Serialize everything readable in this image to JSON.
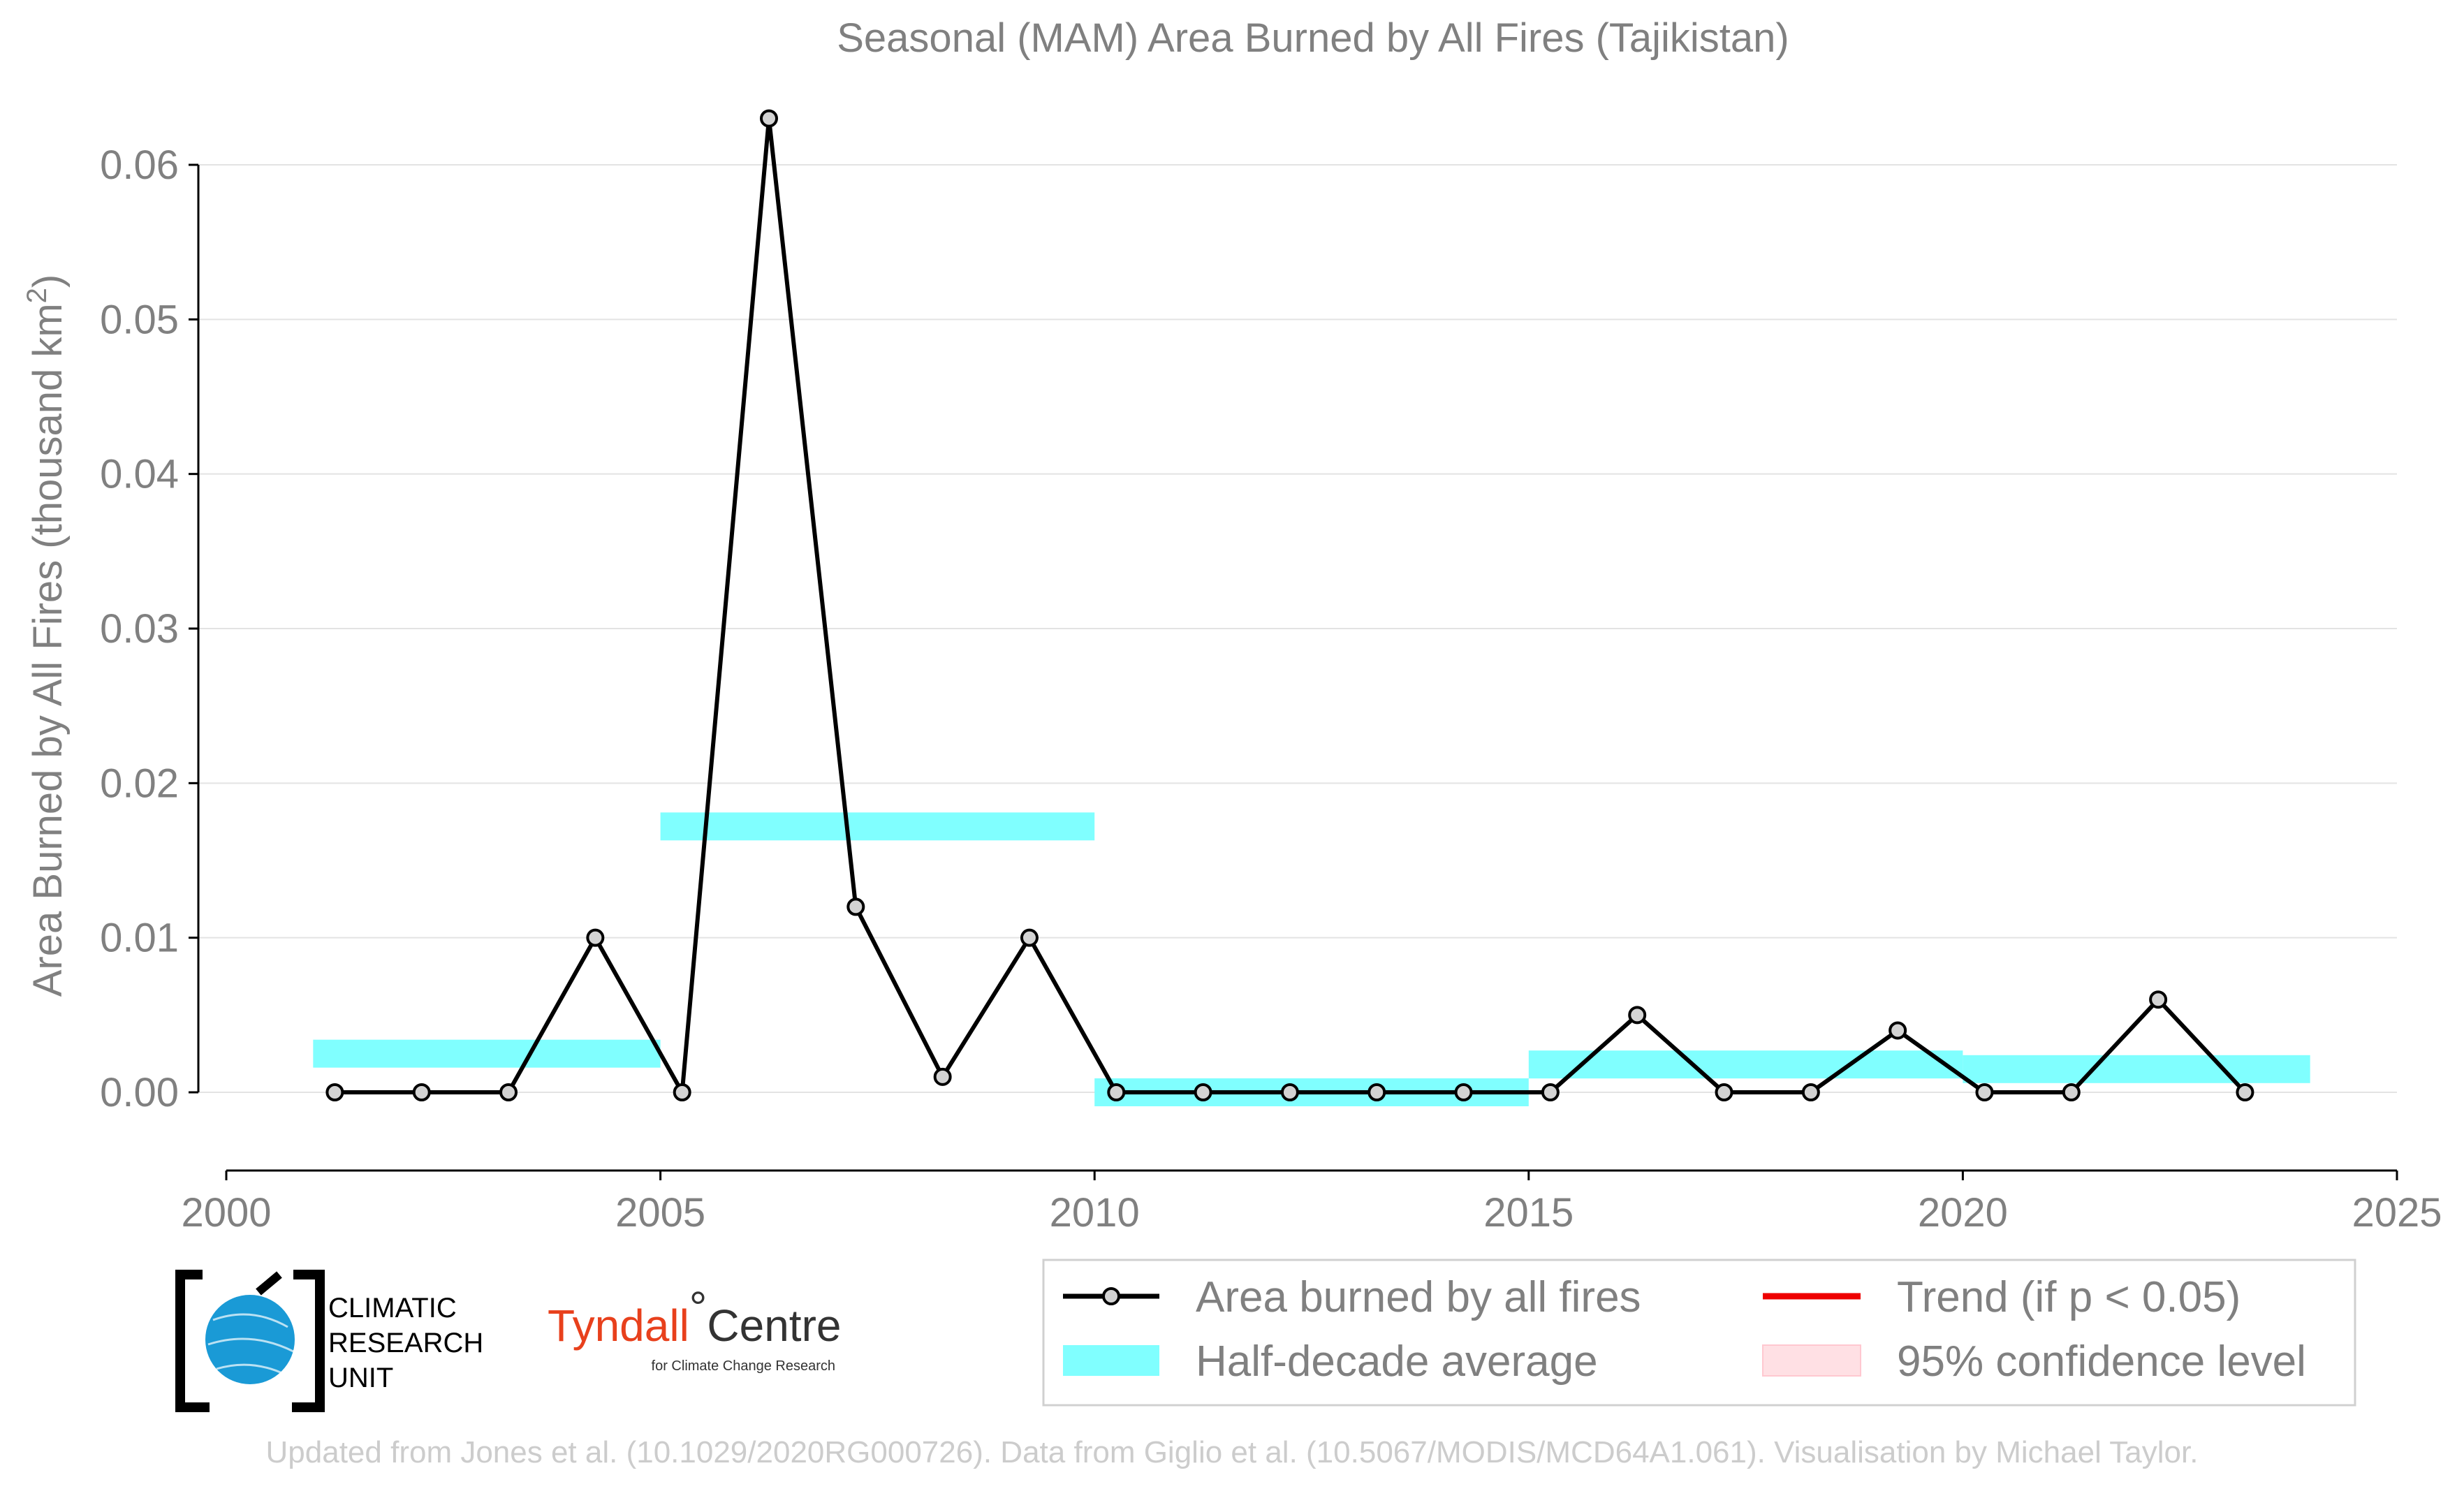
{
  "chart_data": {
    "type": "line",
    "title": "Seasonal (MAM) Area Burned by All Fires (Tajikistan)",
    "xlabel": "",
    "ylabel": "Area Burned by All Fires (thousand km",
    "ylabel_sup": "2",
    "ylabel_tail": ")",
    "xlim": [
      2000,
      2025
    ],
    "ylim": [
      -0.005,
      0.065
    ],
    "x_ticks": [
      2000,
      2005,
      2010,
      2015,
      2020,
      2025
    ],
    "x_tick_labels": [
      "2000",
      "2005",
      "2010",
      "2015",
      "2020",
      "2025"
    ],
    "y_ticks": [
      0.0,
      0.01,
      0.02,
      0.03,
      0.04,
      0.05,
      0.06
    ],
    "y_tick_labels": [
      "0.00",
      "0.01",
      "0.02",
      "0.03",
      "0.04",
      "0.05",
      "0.06"
    ],
    "grid": true,
    "series": [
      {
        "name": "Area burned by all fires",
        "color": "#000000",
        "marker_color": "#d3d3d3",
        "x": [
          2001,
          2002,
          2003,
          2004,
          2005,
          2006,
          2007,
          2008,
          2009,
          2010,
          2011,
          2012,
          2013,
          2014,
          2015,
          2016,
          2017,
          2018,
          2019,
          2020,
          2021,
          2022,
          2023
        ],
        "y": [
          0.0,
          0.0,
          0.0,
          0.01,
          0.0,
          0.063,
          0.012,
          0.001,
          0.01,
          0.0,
          0.0,
          0.0,
          0.0,
          0.0,
          0.0,
          0.005,
          0.0,
          0.0,
          0.004,
          0.0,
          0.0,
          0.006,
          0.0
        ]
      }
    ],
    "half_decade_average": {
      "name": "Half-decade average",
      "color": "#80ffff",
      "segments": [
        {
          "x_start": 2001,
          "x_end": 2005,
          "y": 0.0025
        },
        {
          "x_start": 2005,
          "x_end": 2010,
          "y": 0.0172
        },
        {
          "x_start": 2010,
          "x_end": 2015,
          "y": 0.0
        },
        {
          "x_start": 2015,
          "x_end": 2020,
          "y": 0.0018
        },
        {
          "x_start": 2020,
          "x_end": 2024,
          "y": 0.0015
        }
      ]
    },
    "legend": {
      "placement": "bottom-right",
      "items": [
        {
          "label": "Area burned by all fires",
          "kind": "line-marker",
          "color": "#000000"
        },
        {
          "label": "Trend (if p < 0.05)",
          "kind": "line",
          "color": "#ff0000"
        },
        {
          "label": "Half-decade average",
          "kind": "patch",
          "color": "#80ffff"
        },
        {
          "label": "95% confidence level",
          "kind": "patch",
          "color": "#ffe0e4"
        }
      ]
    }
  },
  "logos": {
    "cru": {
      "line1": "CLIMATIC",
      "line2": "RESEARCH",
      "line3": "UNIT"
    },
    "tyndall": {
      "main": "Tyndall",
      "degree": "°",
      "centre": "Centre",
      "sub": "for Climate Change Research"
    }
  },
  "footer": "Updated from Jones et al. (10.1029/2020RG000726). Data from Giglio et al. (10.5067/MODIS/MCD64A1.061). Visualisation by Michael Taylor."
}
